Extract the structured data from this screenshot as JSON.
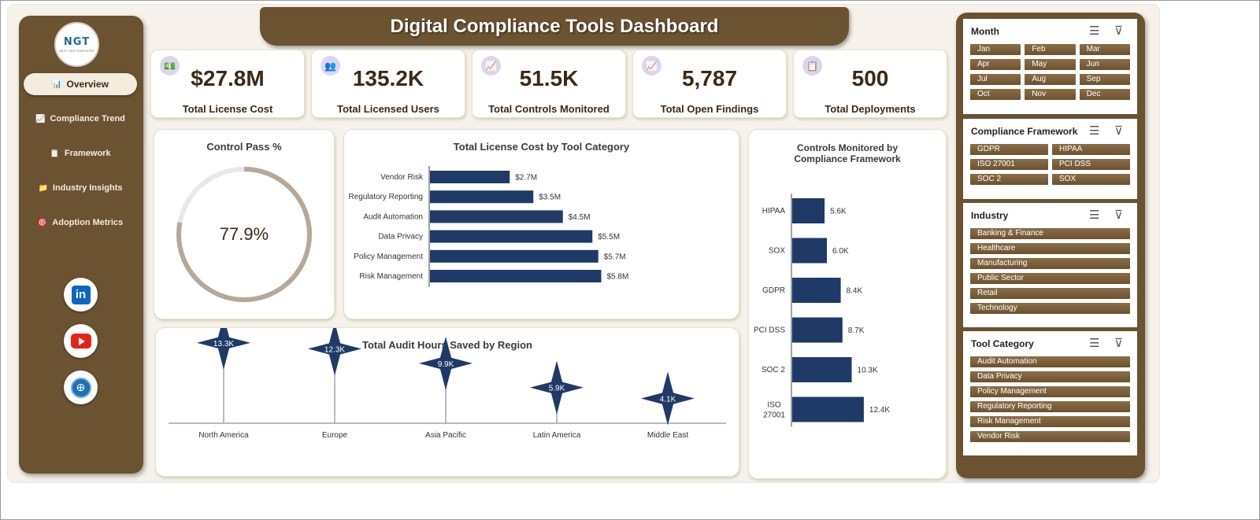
{
  "title": "Digital Compliance Tools Dashboard",
  "logo": {
    "text": "NGT",
    "subtext": "NEXT GEN TEMPLATES"
  },
  "nav": [
    {
      "label": "Overview",
      "icon": "bar-chart-icon"
    },
    {
      "label": "Compliance Trend",
      "icon": "trend-icon"
    },
    {
      "label": "Framework",
      "icon": "document-icon"
    },
    {
      "label": "Industry Insights",
      "icon": "folder-icon"
    },
    {
      "label": "Adoption Metrics",
      "icon": "target-icon"
    }
  ],
  "social": [
    "linkedin-icon",
    "youtube-icon",
    "globe-icon"
  ],
  "kpis": [
    {
      "value": "$27.8M",
      "label": "Total License Cost",
      "icon": "money-icon"
    },
    {
      "value": "135.2K",
      "label": "Total Licensed Users",
      "icon": "users-icon"
    },
    {
      "value": "51.5K",
      "label": "Total Controls Monitored",
      "icon": "line-chart-icon"
    },
    {
      "value": "5,787",
      "label": "Total Open Findings",
      "icon": "line-chart-icon"
    },
    {
      "value": "500",
      "label": "Total Deployments",
      "icon": "clipboard-icon"
    }
  ],
  "donut": {
    "title": "Control Pass %",
    "value": 77.9,
    "label": "77.9%",
    "colors": {
      "filled": "#b5a898",
      "track": "#e8e8e8"
    }
  },
  "chart_data": [
    {
      "type": "bar",
      "orientation": "horizontal",
      "title": "Total License Cost by Tool Category",
      "categories": [
        "Vendor Risk",
        "Regulatory Reporting",
        "Audit Automation",
        "Data Privacy",
        "Policy Management",
        "Risk Management"
      ],
      "values": [
        2.7,
        3.5,
        4.5,
        5.5,
        5.7,
        5.8
      ],
      "labels": [
        "$2.7M",
        "$3.5M",
        "$4.5M",
        "$5.5M",
        "$5.7M",
        "$5.8M"
      ],
      "xlim": [
        0,
        8
      ],
      "color": "#1f3a66"
    },
    {
      "type": "bar",
      "orientation": "horizontal",
      "title": "Controls Monitored by Compliance Framework",
      "categories": [
        "HIPAA",
        "SOX",
        "GDPR",
        "PCI DSS",
        "SOC 2",
        "ISO 27001"
      ],
      "values": [
        5.6,
        6.0,
        8.4,
        8.7,
        10.3,
        12.4
      ],
      "labels": [
        "5.6K",
        "6.0K",
        "8.4K",
        "8.7K",
        "10.3K",
        "12.4K"
      ],
      "xlim": [
        0,
        18
      ],
      "color": "#1f3a66"
    },
    {
      "type": "scatter",
      "marker": "star",
      "title": "Total Audit Hours Saved by Region",
      "categories": [
        "North America",
        "Europe",
        "Asia Pacific",
        "Latin America",
        "Middle East"
      ],
      "values": [
        13.3,
        12.3,
        9.9,
        5.9,
        4.1
      ],
      "labels": [
        "13.3K",
        "12.3K",
        "9.9K",
        "5.9K",
        "4.1K"
      ],
      "ylim": [
        0,
        16
      ],
      "color": "#1f3a66"
    }
  ],
  "filters": [
    {
      "title": "Month",
      "items": [
        "Jan",
        "Feb",
        "Mar",
        "Apr",
        "May",
        "Jun",
        "Jul",
        "Aug",
        "Sep",
        "Oct",
        "Nov",
        "Dec"
      ],
      "columns": 3
    },
    {
      "title": "Compliance Framework",
      "items": [
        "GDPR",
        "HIPAA",
        "ISO 27001",
        "PCI DSS",
        "SOC 2",
        "SOX"
      ],
      "columns": 2
    },
    {
      "title": "Industry",
      "items": [
        "Banking & Finance",
        "Healthcare",
        "Manufacturing",
        "Public Sector",
        "Retail",
        "Technology"
      ],
      "columns": 1
    },
    {
      "title": "Tool Category",
      "items": [
        "Audit Automation",
        "Data Privacy",
        "Policy Management",
        "Regulatory Reporting",
        "Risk Management",
        "Vendor Risk"
      ],
      "columns": 1
    }
  ],
  "colors": {
    "brown": "#6b5230",
    "bar": "#1f3a66",
    "text": "#3a2a16"
  }
}
